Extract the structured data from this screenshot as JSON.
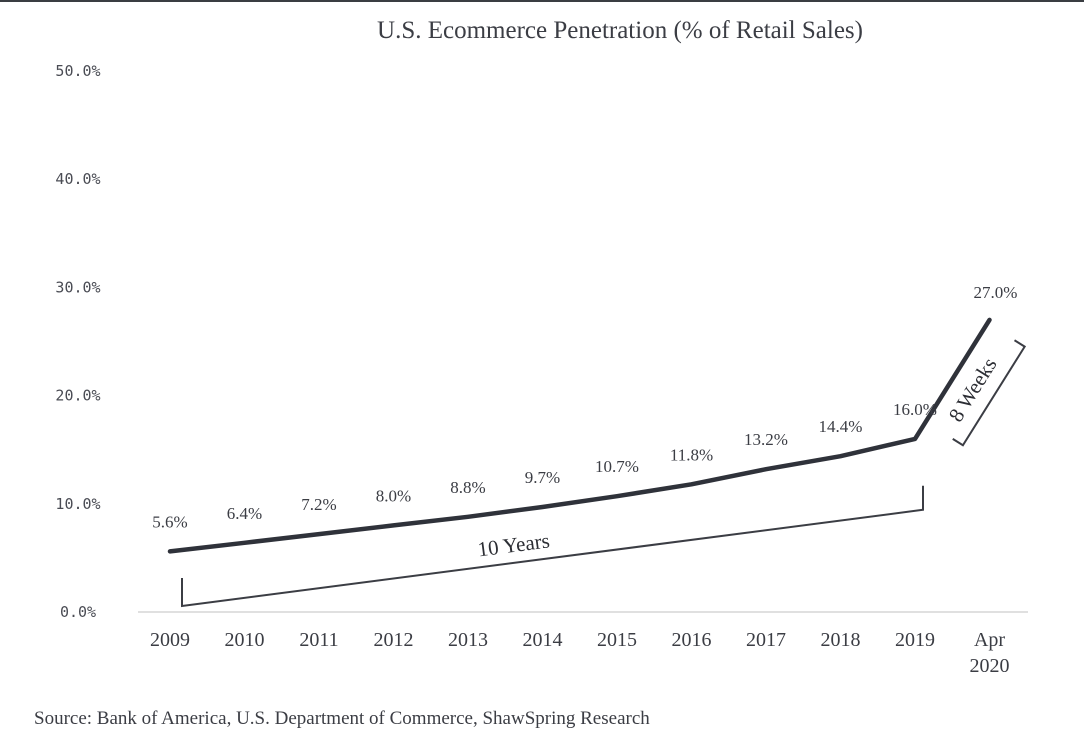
{
  "chart_data": {
    "type": "line",
    "title": "U.S. Ecommerce  Penetration  (% of Retail Sales)",
    "categories": [
      "2009",
      "2010",
      "2011",
      "2012",
      "2013",
      "2014",
      "2015",
      "2016",
      "2017",
      "2018",
      "2019",
      "Apr 2020"
    ],
    "values": [
      5.6,
      6.4,
      7.2,
      8.0,
      8.8,
      9.7,
      10.7,
      11.8,
      13.2,
      14.4,
      16.0,
      27.0
    ],
    "data_labels": [
      "5.6%",
      "6.4%",
      "7.2%",
      "8.0%",
      "8.8%",
      "9.7%",
      "10.7%",
      "11.8%",
      "13.2%",
      "14.4%",
      "16.0%",
      "27.0%"
    ],
    "y_ticks": [
      0,
      10,
      20,
      30,
      40,
      50
    ],
    "y_tick_labels": [
      "0.0%",
      "10.0%",
      "20.0%",
      "30.0%",
      "40.0%",
      "50.0%"
    ],
    "ylim": [
      0,
      50
    ],
    "xlabel": "",
    "ylabel": "",
    "grid": false,
    "legend": "none",
    "line_color": "#2f323a",
    "annotations": [
      {
        "text": "10 Years",
        "from": "2009",
        "to": "2019"
      },
      {
        "text": "8 Weeks",
        "from": "2019",
        "to": "Apr 2020"
      }
    ],
    "source": "Source: Bank of America, U.S. Department of Commerce, ShawSpring Research"
  }
}
